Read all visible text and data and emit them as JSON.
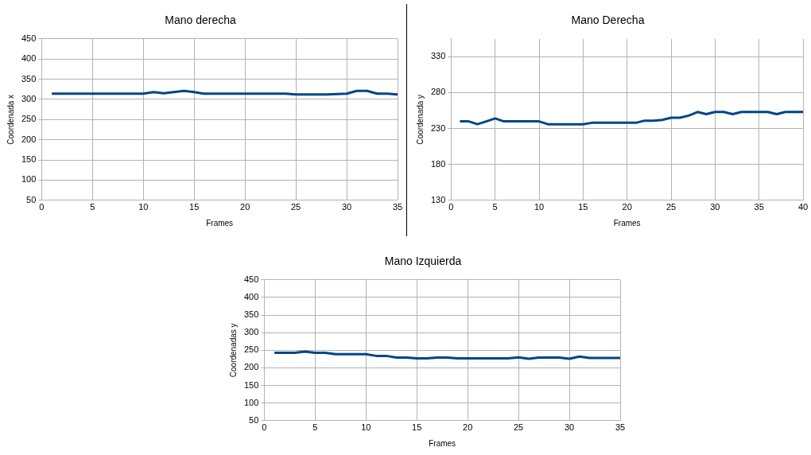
{
  "chart_data": [
    {
      "type": "line",
      "title": "Mano derecha",
      "xlabel": "Frames",
      "ylabel": "Coordenada x",
      "x": [
        1,
        2,
        3,
        4,
        5,
        6,
        7,
        8,
        9,
        10,
        11,
        12,
        13,
        14,
        15,
        16,
        17,
        18,
        19,
        20,
        21,
        22,
        23,
        24,
        25,
        26,
        27,
        28,
        29,
        30,
        31,
        32,
        33,
        34,
        35
      ],
      "series": [
        {
          "color": "#004586",
          "values": [
            314,
            314,
            314,
            314,
            314,
            314,
            314,
            314,
            314,
            314,
            318,
            315,
            318,
            321,
            318,
            314,
            314,
            314,
            314,
            314,
            314,
            314,
            314,
            314,
            312,
            312,
            312,
            312,
            313,
            314,
            321,
            321,
            314,
            314,
            312
          ]
        }
      ],
      "xlim": [
        0,
        35
      ],
      "xticks": [
        0,
        5,
        10,
        15,
        20,
        25,
        30,
        35
      ],
      "ylim": [
        50,
        450
      ],
      "yticks": [
        50,
        100,
        150,
        200,
        250,
        300,
        350,
        400,
        450
      ],
      "grid": true,
      "legend": false,
      "marker": "none",
      "line_style": "solid"
    },
    {
      "type": "line",
      "title": "Mano Derecha",
      "xlabel": "Frames",
      "ylabel": "Coordenada y",
      "x": [
        1,
        2,
        3,
        4,
        5,
        6,
        7,
        8,
        9,
        10,
        11,
        12,
        13,
        14,
        15,
        16,
        17,
        18,
        19,
        20,
        21,
        22,
        23,
        24,
        25,
        26,
        27,
        28,
        29,
        30,
        31,
        32,
        33,
        34,
        35,
        36,
        37,
        38,
        39,
        40
      ],
      "series": [
        {
          "color": "#004586",
          "values": [
            240,
            240,
            236,
            240,
            244,
            240,
            240,
            240,
            240,
            240,
            236,
            236,
            236,
            236,
            236,
            238,
            238,
            238,
            238,
            238,
            238,
            241,
            241,
            242,
            245,
            245,
            248,
            253,
            250,
            253,
            253,
            250,
            253,
            253,
            253,
            253,
            250,
            253,
            253,
            253
          ]
        }
      ],
      "xlim": [
        0,
        40
      ],
      "xticks": [
        0,
        5,
        10,
        15,
        20,
        25,
        30,
        35,
        40
      ],
      "ylim": [
        130,
        355
      ],
      "yticks": [
        130,
        180,
        230,
        280,
        330
      ],
      "grid": true,
      "legend": false,
      "marker": "none",
      "line_style": "solid"
    },
    {
      "type": "line",
      "title": "Mano Izquierda",
      "xlabel": "Frames",
      "ylabel": "Coordenadas y",
      "x": [
        1,
        2,
        3,
        4,
        5,
        6,
        7,
        8,
        9,
        10,
        11,
        12,
        13,
        14,
        15,
        16,
        17,
        18,
        19,
        20,
        21,
        22,
        23,
        24,
        25,
        26,
        27,
        28,
        29,
        30,
        31,
        32,
        33,
        34,
        35
      ],
      "series": [
        {
          "color": "#004586",
          "values": [
            243,
            243,
            243,
            246,
            243,
            243,
            239,
            239,
            239,
            239,
            234,
            234,
            229,
            229,
            227,
            227,
            229,
            229,
            227,
            227,
            227,
            227,
            227,
            227,
            230,
            226,
            229,
            229,
            229,
            226,
            232,
            228,
            228,
            228,
            228
          ]
        }
      ],
      "xlim": [
        0,
        35
      ],
      "xticks": [
        0,
        5,
        10,
        15,
        20,
        25,
        30,
        35
      ],
      "ylim": [
        50,
        450
      ],
      "yticks": [
        50,
        100,
        150,
        200,
        250,
        300,
        350,
        400,
        450
      ],
      "grid": true,
      "legend": false,
      "marker": "none",
      "line_style": "solid"
    }
  ]
}
